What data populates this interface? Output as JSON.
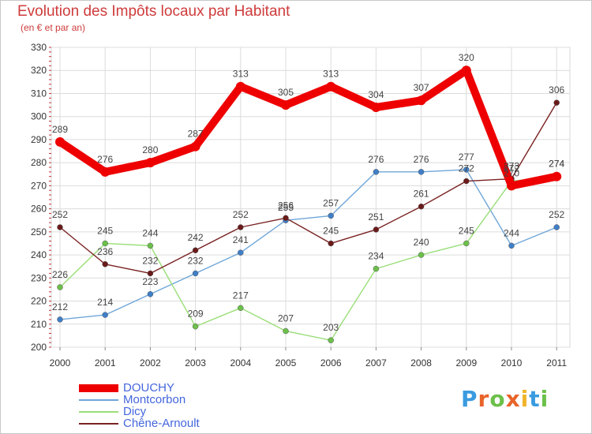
{
  "title": "Evolution des Impôts locaux par Habitant",
  "subtitle": "(en € et par an)",
  "logo": {
    "text": "Proxiti",
    "letters": [
      "P",
      "r",
      "o",
      "x",
      "i",
      "t",
      "i"
    ],
    "colors": [
      "#3a9be0",
      "#e8642a",
      "#6cc04a",
      "#e8642a",
      "#f0b429",
      "#3a9be0",
      "#6cc04a"
    ]
  },
  "chart_data": {
    "type": "line",
    "title": "Evolution des Impôts locaux par Habitant",
    "subtitle": "(en € et par an)",
    "xlabel": "",
    "ylabel": "",
    "x": [
      "2000",
      "2001",
      "2002",
      "2003",
      "2004",
      "2005",
      "2006",
      "2007",
      "2008",
      "2009",
      "2010",
      "2011"
    ],
    "ylim": [
      200,
      330
    ],
    "yticks": [
      200,
      210,
      220,
      230,
      240,
      250,
      260,
      270,
      280,
      290,
      300,
      310,
      320,
      330
    ],
    "grid": true,
    "legend_position": "bottom-left",
    "series": [
      {
        "name": "DOUCHY",
        "values": [
          289,
          276,
          280,
          287,
          313,
          305,
          313,
          304,
          307,
          320,
          270,
          274
        ],
        "color": "#ee0000",
        "marker_color": "#ee0000",
        "thick": true
      },
      {
        "name": "Montcorbon",
        "values": [
          212,
          214,
          223,
          232,
          241,
          255,
          257,
          276,
          276,
          277,
          244,
          252
        ],
        "color": "#6ea6d8",
        "marker_color": "#3f7fc8",
        "thick": false
      },
      {
        "name": "Dicy",
        "values": [
          226,
          245,
          244,
          209,
          217,
          207,
          203,
          234,
          240,
          245,
          272,
          274
        ],
        "color": "#9ade78",
        "marker_color": "#6cc04a",
        "thick": false
      },
      {
        "name": "Chêne-Arnoult",
        "values": [
          252,
          236,
          232,
          242,
          252,
          256,
          245,
          251,
          261,
          272,
          273,
          306
        ],
        "color": "#7a2222",
        "marker_color": "#6a1a1a",
        "thick": false
      }
    ]
  }
}
